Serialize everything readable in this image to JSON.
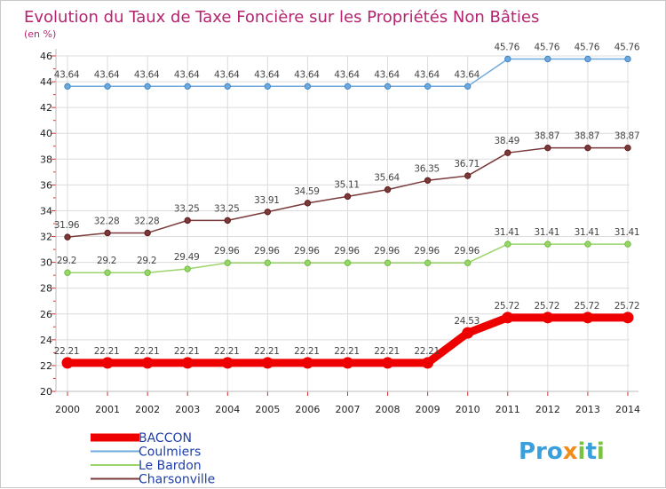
{
  "chart_data": {
    "type": "line",
    "title": "Evolution du Taux de Taxe Foncière sur les Propriétés Non Bâties",
    "ylabel": "(en %)",
    "xlabel": "",
    "ylim": [
      20,
      46
    ],
    "yticks": [
      "20",
      "22",
      "24",
      "26",
      "28",
      "30",
      "32",
      "34",
      "36",
      "38",
      "40",
      "42",
      "44",
      "46"
    ],
    "categories": [
      "2000",
      "2001",
      "2002",
      "2003",
      "2004",
      "2005",
      "2006",
      "2007",
      "2008",
      "2009",
      "2010",
      "2011",
      "2012",
      "2013",
      "2014"
    ],
    "legend_position": "bottom-left",
    "series": [
      {
        "name": "BACCON",
        "color": "#ee0000",
        "width": "thick",
        "values": [
          22.21,
          22.21,
          22.21,
          22.21,
          22.21,
          22.21,
          22.21,
          22.21,
          22.21,
          22.21,
          24.53,
          25.72,
          25.72,
          25.72,
          25.72
        ],
        "labels": [
          "22.21",
          "22.21",
          "22.21",
          "22.21",
          "22.21",
          "22.21",
          "22.21",
          "22.21",
          "22.21",
          "22.21",
          "24.53",
          "25.72",
          "25.72",
          "25.72",
          "25.72"
        ]
      },
      {
        "name": "Coulmiers",
        "color": "#6fa8dc",
        "marker": "#3d85c6",
        "width": "thin",
        "values": [
          43.64,
          43.64,
          43.64,
          43.64,
          43.64,
          43.64,
          43.64,
          43.64,
          43.64,
          43.64,
          43.64,
          45.76,
          45.76,
          45.76,
          45.76
        ],
        "labels": [
          "43.64",
          "43.64",
          "43.64",
          "43.64",
          "43.64",
          "43.64",
          "43.64",
          "43.64",
          "43.64",
          "43.64",
          "43.64",
          "45.76",
          "45.76",
          "45.76",
          "45.76"
        ]
      },
      {
        "name": "Le Bardon",
        "color": "#9bd56a",
        "marker": "#6abf40",
        "width": "thin",
        "values": [
          29.2,
          29.2,
          29.2,
          29.49,
          29.96,
          29.96,
          29.96,
          29.96,
          29.96,
          29.96,
          29.96,
          31.41,
          31.41,
          31.41,
          31.41
        ],
        "labels": [
          "29.2",
          "29.2",
          "29.2",
          "29.49",
          "29.96",
          "29.96",
          "29.96",
          "29.96",
          "29.96",
          "29.96",
          "29.96",
          "31.41",
          "31.41",
          "31.41",
          "31.41"
        ]
      },
      {
        "name": "Charsonville",
        "color": "#7a3a3a",
        "marker": "#5e1a1a",
        "width": "thin",
        "values": [
          31.96,
          32.28,
          32.28,
          33.25,
          33.25,
          33.91,
          34.59,
          35.11,
          35.64,
          36.35,
          36.71,
          38.49,
          38.87,
          38.87,
          38.87
        ],
        "labels": [
          "31.96",
          "32.28",
          "32.28",
          "33.25",
          "33.25",
          "33.91",
          "34.59",
          "35.11",
          "35.64",
          "36.35",
          "36.71",
          "38.49",
          "38.87",
          "38.87",
          "38.87"
        ]
      }
    ]
  },
  "logo": {
    "p1": "Pro",
    "x": "x",
    "i": "i",
    "t": "t",
    "i2": "i"
  }
}
